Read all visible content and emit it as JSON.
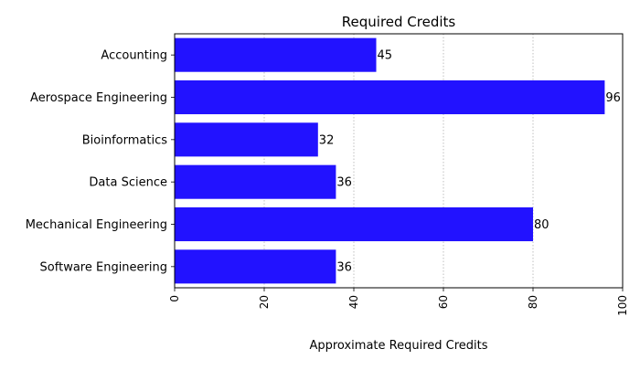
{
  "chart_data": {
    "type": "bar",
    "orientation": "horizontal",
    "title": "Required Credits",
    "xlabel": "Approximate Required Credits",
    "ylabel": "",
    "categories": [
      "Accounting",
      "Aerospace Engineering",
      "Bioinformatics",
      "Data Science",
      "Mechanical Engineering",
      "Software Engineering"
    ],
    "values": [
      45,
      96,
      32,
      36,
      80,
      36
    ],
    "data_labels": [
      "45",
      "96",
      "32",
      "36",
      "80",
      "36"
    ],
    "xlim": [
      0,
      100
    ],
    "xticks": [
      0,
      20,
      40,
      60,
      80,
      100
    ],
    "xtick_labels": [
      "0",
      "20",
      "40",
      "60",
      "80",
      "100"
    ],
    "xtick_rotation": "vertical",
    "grid": "x, dotted",
    "legend": "none",
    "bar_color": "#2212ff"
  }
}
